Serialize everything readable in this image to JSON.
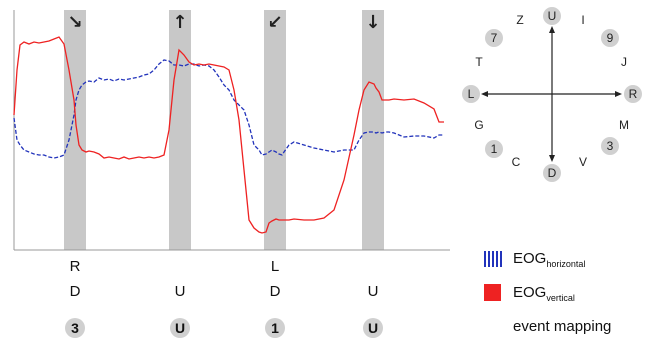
{
  "chart_data": {
    "type": "line",
    "title": "",
    "xlabel": "",
    "ylabel": "",
    "xlim": [
      0,
      430
    ],
    "ylim": [
      0,
      220
    ],
    "x": [
      0,
      3,
      6,
      10,
      15,
      20,
      25,
      30,
      35,
      40,
      45,
      50,
      55,
      60,
      62,
      65,
      68,
      72,
      75,
      80,
      85,
      90,
      95,
      100,
      105,
      110,
      115,
      120,
      125,
      130,
      135,
      140,
      145,
      150,
      155,
      160,
      165,
      170,
      175,
      180,
      185,
      190,
      195,
      200,
      205,
      210,
      215,
      220,
      225,
      230,
      235,
      240,
      245,
      248,
      252,
      255,
      258,
      262,
      265,
      268,
      270,
      275,
      280,
      290,
      300,
      310,
      320,
      330,
      340,
      345,
      350,
      355,
      360,
      362,
      365,
      368,
      372,
      375,
      380,
      390,
      400,
      410,
      420,
      425,
      430
    ],
    "series": [
      {
        "name": "EOG horizontal",
        "color": "#2233bb",
        "style": "dashed",
        "values": [
          132,
          110,
          105,
          100,
          98,
          96,
          95,
          95,
          93,
          92,
          93,
          95,
          110,
          135,
          150,
          160,
          165,
          168,
          169,
          168,
          172,
          170,
          171,
          169,
          171,
          170,
          171,
          172,
          173,
          175,
          176,
          180,
          186,
          190,
          189,
          185,
          185,
          184,
          186,
          186,
          184,
          185,
          184,
          180,
          173,
          165,
          160,
          150,
          145,
          140,
          125,
          105,
          100,
          95,
          96,
          98,
          100,
          98,
          96,
          95,
          98,
          105,
          108,
          105,
          102,
          100,
          98,
          100,
          100,
          110,
          117,
          118,
          118,
          117,
          118,
          117,
          118,
          118,
          117,
          113,
          114,
          114,
          112,
          115,
          115
        ]
      },
      {
        "name": "EOG vertical",
        "color": "#ee2222",
        "style": "solid",
        "values": [
          135,
          180,
          205,
          208,
          206,
          208,
          207,
          208,
          209,
          211,
          213,
          206,
          180,
          150,
          125,
          105,
          100,
          98,
          99,
          98,
          96,
          92,
          93,
          92,
          91,
          93,
          91,
          92,
          93,
          92,
          93,
          92,
          93,
          95,
          120,
          170,
          200,
          195,
          188,
          185,
          186,
          185,
          186,
          185,
          184,
          183,
          180,
          160,
          130,
          80,
          30,
          22,
          18,
          17,
          18,
          27,
          29,
          31,
          30,
          30,
          30,
          30,
          31,
          30,
          30,
          32,
          40,
          70,
          115,
          140,
          160,
          168,
          166,
          162,
          158,
          150,
          150,
          150,
          151,
          150,
          151,
          147,
          141,
          128,
          128
        ]
      }
    ],
    "arrows": [
      "↘",
      "↑",
      "↙",
      "↓"
    ],
    "row1": [
      "R",
      "",
      "L",
      ""
    ],
    "row2": [
      "D",
      "U",
      "D",
      "U"
    ],
    "events": [
      "3",
      "U",
      "1",
      "U"
    ],
    "legend": {
      "horizontal_main": "EOG",
      "horizontal_sub": "horizontal",
      "vertical_main": "EOG",
      "vertical_sub": "vertical",
      "mapping": "event mapping"
    },
    "compass": {
      "circled": [
        "U",
        "R",
        "D",
        "L",
        "9",
        "3",
        "1",
        "7"
      ],
      "plain": [
        "I",
        "J",
        "M",
        "V",
        "C",
        "G",
        "T",
        "Z"
      ]
    }
  }
}
